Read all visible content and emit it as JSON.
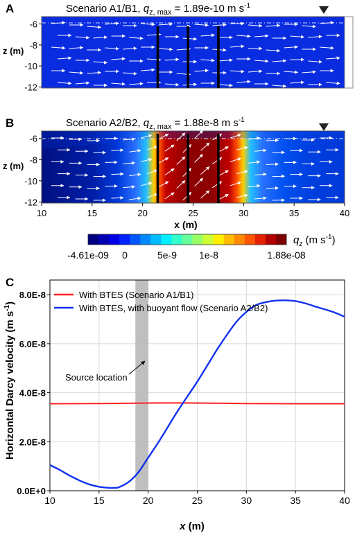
{
  "panels": {
    "A": {
      "letter": "A",
      "title_prefix": "Scenario A1/B1, ",
      "q": "q",
      "sub": "z, max",
      "title_suffix": " = 1.89e-10 m s",
      "sup": "-1",
      "ylabel": "z (m)",
      "yticks": [
        "-6",
        "-8",
        "-10",
        "-12"
      ],
      "wells_x": [
        21.5,
        24.5,
        27.5
      ]
    },
    "B": {
      "letter": "B",
      "title_prefix": "Scenario A2/B2, ",
      "q": "q",
      "sub": "z, max",
      "title_suffix": " = 1.88e-8 m s",
      "sup": "-1",
      "ylabel": "z (m)",
      "yticks": [
        "-6",
        "-8",
        "-10",
        "-12"
      ],
      "xticks": [
        "10",
        "15",
        "20",
        "25",
        "30",
        "35",
        "40"
      ],
      "xlabel": "x (m)",
      "wells_x": [
        21.5,
        24.5,
        27.5
      ]
    }
  },
  "colorbar": {
    "labels": [
      "-4.61e-09",
      "0",
      "5e-9",
      "1e-8",
      "1.88e-08"
    ],
    "quantity": "q",
    "quantity_sub": "z",
    "unit": " (m s",
    "unit_sup": "-1",
    "unit_close": ")",
    "colors": [
      "#00007f",
      "#0000b2",
      "#0000e5",
      "#0022ff",
      "#0055ff",
      "#0088ff",
      "#00bbff",
      "#00eeff",
      "#33ffcc",
      "#66ff99",
      "#99ff66",
      "#ccff33",
      "#ffee00",
      "#ffbb00",
      "#ff8800",
      "#ff5500",
      "#e52200",
      "#b20000",
      "#7f0000"
    ]
  },
  "panelC": {
    "letter": "C",
    "annotation": "Source location",
    "xlabel_italic": "x",
    "xlabel_rest": " (m)",
    "ylabel": "Horizontal Darcy velocity (m s",
    "ylabel_sup": "-1",
    "ylabel_close": ")"
  },
  "chart_data": {
    "type": "line",
    "title": "",
    "xlabel": "x (m)",
    "ylabel": "Horizontal Darcy velocity (m s-1)",
    "xlim": [
      10,
      40
    ],
    "ylim": [
      0,
      8.6e-08
    ],
    "xticks": [
      10,
      15,
      20,
      25,
      30,
      35,
      40
    ],
    "yticks": [
      0,
      2e-08,
      4e-08,
      6e-08,
      8e-08
    ],
    "ytick_labels": [
      "0.0E+0",
      "2.0E-8",
      "4.0E-8",
      "6.0E-8",
      "8.0E-8"
    ],
    "grid": true,
    "legend_position": "top-left",
    "source_band": [
      18.7,
      20.0
    ],
    "series": [
      {
        "name": "With BTES (Scenario A1/B1)",
        "color": "#ff2020",
        "x": [
          10,
          15,
          20,
          25,
          30,
          35,
          40
        ],
        "y": [
          3.55e-08,
          3.56e-08,
          3.58e-08,
          3.58e-08,
          3.56e-08,
          3.55e-08,
          3.55e-08
        ]
      },
      {
        "name": "With BTES, with buoyant flow (Scenario A2/B2)",
        "color": "#1030f0",
        "x": [
          10,
          11,
          12,
          13,
          14,
          15,
          16,
          16.5,
          17,
          18,
          19,
          20,
          21,
          22,
          23,
          24,
          25,
          26,
          27,
          28,
          29,
          30,
          31,
          32,
          33,
          34,
          35,
          36,
          37,
          38,
          39,
          40
        ],
        "y": [
          1.05e-08,
          8.5e-09,
          6.2e-09,
          4.2e-09,
          2.6e-09,
          1.6e-09,
          1.2e-09,
          1.2e-09,
          1.4e-09,
          3.5e-09,
          7.5e-09,
          1.35e-08,
          1.95e-08,
          2.6e-08,
          3.25e-08,
          3.85e-08,
          4.45e-08,
          5.1e-08,
          5.75e-08,
          6.35e-08,
          6.9e-08,
          7.3e-08,
          7.58e-08,
          7.7e-08,
          7.76e-08,
          7.77e-08,
          7.74e-08,
          7.65e-08,
          7.52e-08,
          7.4e-08,
          7.27e-08,
          7.1e-08
        ]
      }
    ]
  }
}
